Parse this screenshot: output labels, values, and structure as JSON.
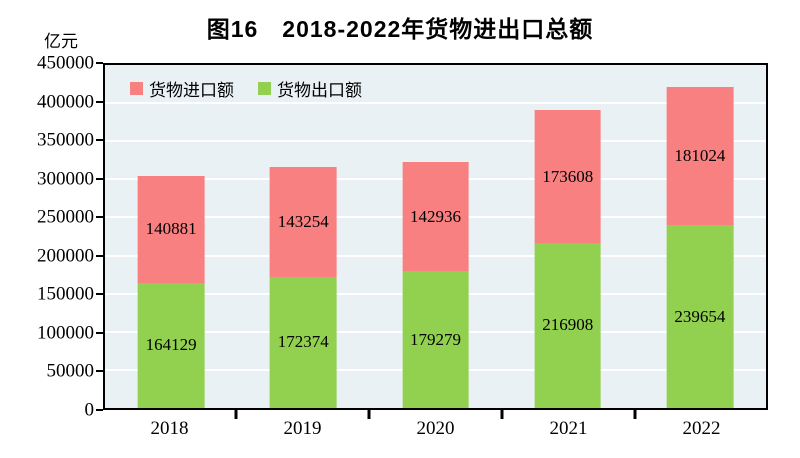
{
  "title": "图16　2018-2022年货物进出口总额",
  "y_axis": {
    "unit": "亿元"
  },
  "colors": {
    "import": "#F88080",
    "export": "#92D050",
    "plot_bg": "#EAF1F5",
    "grid": "#FFFFFF",
    "frame": "#000000",
    "label_text": "#000000"
  },
  "chart_data": {
    "type": "bar",
    "stacked": true,
    "title": "图16　2018-2022年货物进出口总额",
    "ylabel": "亿元",
    "categories": [
      "2018",
      "2019",
      "2020",
      "2021",
      "2022"
    ],
    "series": [
      {
        "name": "货物进口额",
        "color": "#F88080",
        "stack_position": "top",
        "values": [
          140881,
          143254,
          142936,
          173608,
          181024
        ]
      },
      {
        "name": "货物出口额",
        "color": "#92D050",
        "stack_position": "bottom",
        "values": [
          164129,
          172374,
          179279,
          216908,
          239654
        ]
      }
    ],
    "ylim": [
      0,
      450000
    ],
    "ytick_step": 50000,
    "grid": true,
    "legend_position": "top-left-inside"
  }
}
